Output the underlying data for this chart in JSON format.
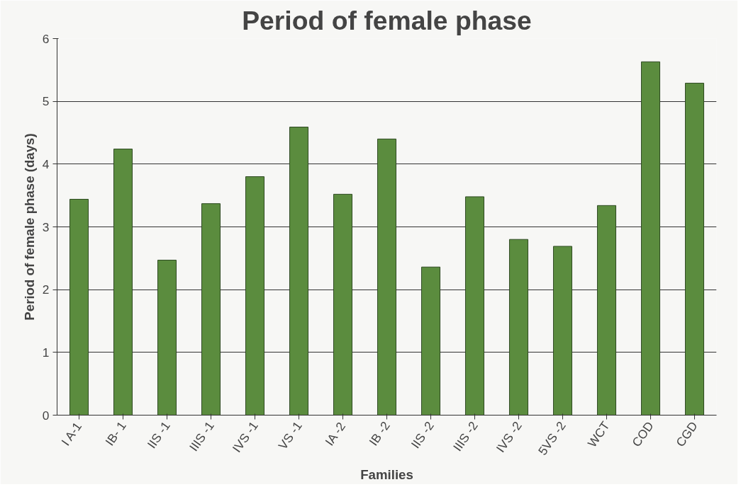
{
  "chart_data": {
    "type": "bar",
    "title": "Period of female phase",
    "xlabel": "Families",
    "ylabel": "Period of female phase (days)",
    "categories": [
      "I A-1",
      "IB- 1",
      "IIS -1",
      "IIIS -1",
      "IVS -1",
      "VS -1",
      "IA -2",
      "IB -2",
      "IIS -2",
      "IIIS -2",
      "IVS -2",
      "5VS -2",
      "WCT",
      "COD",
      "CGD"
    ],
    "values": [
      3.44,
      4.24,
      2.47,
      3.37,
      3.8,
      4.59,
      3.52,
      4.4,
      2.36,
      3.48,
      2.8,
      2.69,
      3.34,
      5.63,
      5.29
    ],
    "color": "#5b8c3e",
    "ylim": [
      0,
      6
    ],
    "yticks": [
      0,
      1,
      2,
      3,
      4,
      5,
      6
    ],
    "grid": "y"
  }
}
